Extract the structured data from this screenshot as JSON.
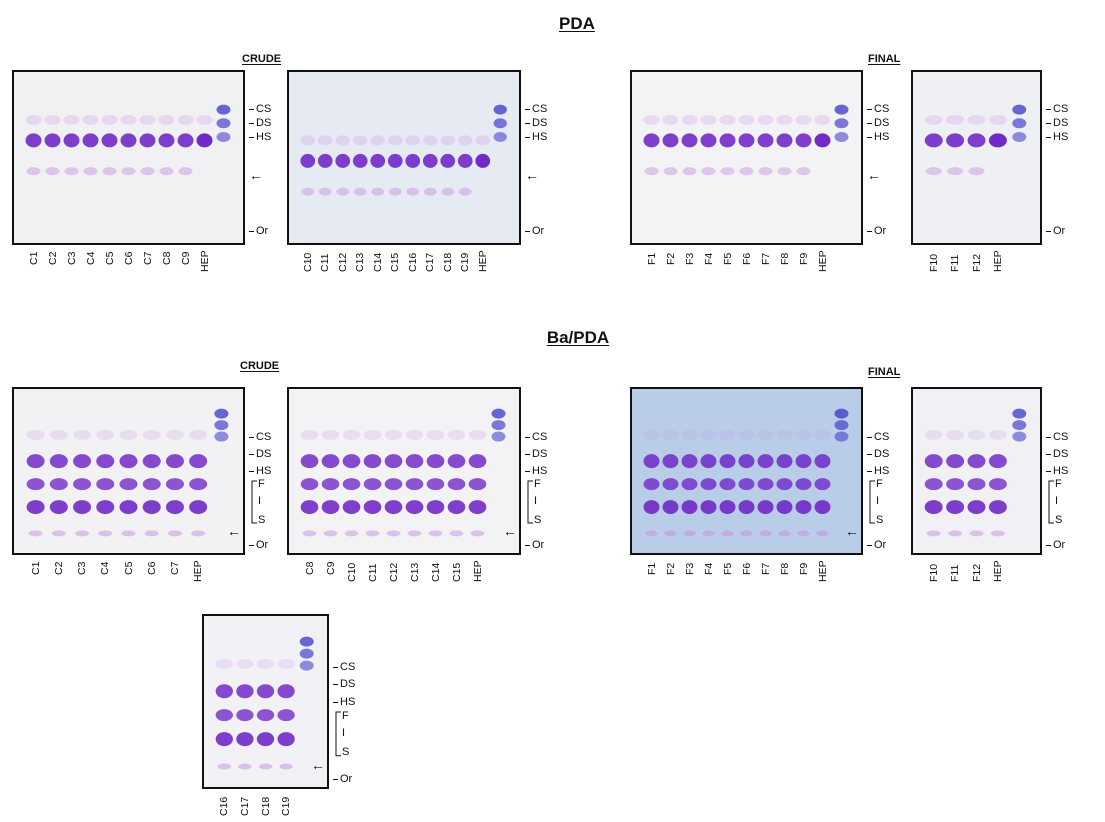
{
  "sections": [
    {
      "title": "PDA"
    },
    {
      "title": "Ba/PDA"
    }
  ],
  "group_labels": {
    "crude": "CRUDE",
    "final": "FINAL"
  },
  "arrow_glyph": "←",
  "gels": [
    {
      "id": "pda-crude-1",
      "lanes": [
        "C1",
        "C2",
        "C3",
        "C4",
        "C5",
        "C6",
        "C7",
        "C8",
        "C9",
        "HEP"
      ],
      "markers": [
        "CS",
        "DS",
        "HS",
        "Or"
      ],
      "bg": "#f1f0f3"
    },
    {
      "id": "pda-crude-2",
      "lanes": [
        "C10",
        "C11",
        "C12",
        "C13",
        "C14",
        "C15",
        "C16",
        "C17",
        "C18",
        "C19",
        "HEP"
      ],
      "markers": [
        "CS",
        "DS",
        "HS",
        "Or"
      ],
      "bg": "#e6eaf3"
    },
    {
      "id": "pda-final-1",
      "lanes": [
        "F1",
        "F2",
        "F3",
        "F4",
        "F5",
        "F6",
        "F7",
        "F8",
        "F9",
        "HEP"
      ],
      "markers": [
        "CS",
        "DS",
        "HS",
        "Or"
      ],
      "bg": "#f3f2f4"
    },
    {
      "id": "pda-final-2",
      "lanes": [
        "F10",
        "F11",
        "F12",
        "HEP"
      ],
      "markers": [
        "CS",
        "DS",
        "HS",
        "Or"
      ],
      "bg": "#eef0f4"
    },
    {
      "id": "ba-crude-1",
      "lanes": [
        "C1",
        "C2",
        "C3",
        "C4",
        "C5",
        "C6",
        "C7",
        "HEP"
      ],
      "markers": [
        "CS",
        "DS",
        "HS",
        "F",
        "I",
        "S",
        "Or"
      ],
      "bg": "#f2f1f4"
    },
    {
      "id": "ba-crude-2",
      "lanes": [
        "C8",
        "C9",
        "C10",
        "C11",
        "C12",
        "C13",
        "C14",
        "C15",
        "HEP"
      ],
      "markers": [
        "CS",
        "DS",
        "HS",
        "F",
        "I",
        "S",
        "Or"
      ],
      "bg": "#f3f2f5"
    },
    {
      "id": "ba-final-1",
      "lanes": [
        "F1",
        "F2",
        "F3",
        "F4",
        "F5",
        "F6",
        "F7",
        "F8",
        "F9",
        "HEP"
      ],
      "markers": [
        "CS",
        "DS",
        "HS",
        "F",
        "I",
        "S",
        "Or"
      ],
      "bg": "#b9cde9"
    },
    {
      "id": "ba-final-2",
      "lanes": [
        "F10",
        "F11",
        "F12",
        "HEP"
      ],
      "markers": [
        "CS",
        "DS",
        "HS",
        "F",
        "I",
        "S",
        "Or"
      ],
      "bg": "#f1f1f5"
    },
    {
      "id": "ba-crude-3",
      "lanes": [
        "C16",
        "C17",
        "C18",
        "C19"
      ],
      "markers": [
        "CS",
        "DS",
        "HS",
        "F",
        "I",
        "S",
        "Or"
      ],
      "bg": "#f2f1f5"
    }
  ],
  "colors": {
    "band": "#6a1fc4",
    "band_faint": "#c58fe0",
    "std_blue": "#3a36c8",
    "frame": "#111111"
  }
}
